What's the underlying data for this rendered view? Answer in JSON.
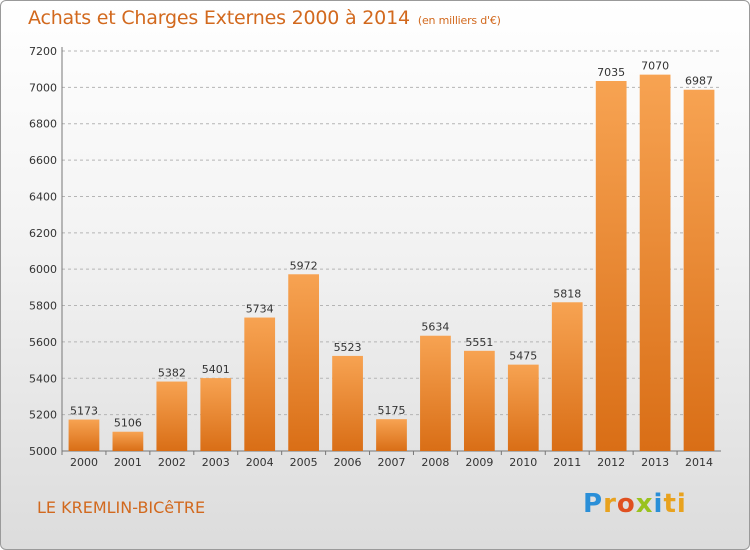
{
  "header": {
    "title": "Achats et Charges Externes 2000 à 2014",
    "subtitle": "(en milliers d'€)"
  },
  "footer": {
    "city": "LE KREMLIN-BICêTRE",
    "logo_parts": [
      "P",
      "r",
      "o",
      "x",
      "i",
      "ti"
    ]
  },
  "chart_data": {
    "type": "bar",
    "title": "Achats et Charges Externes 2000 à 2014",
    "subtitle": "(en milliers d'€)",
    "xlabel": "",
    "ylabel": "",
    "categories": [
      "2000",
      "2001",
      "2002",
      "2003",
      "2004",
      "2005",
      "2006",
      "2007",
      "2008",
      "2009",
      "2010",
      "2011",
      "2012",
      "2013",
      "2014"
    ],
    "values": [
      5173,
      5106,
      5382,
      5401,
      5734,
      5972,
      5523,
      5175,
      5634,
      5551,
      5475,
      5818,
      7035,
      7070,
      6987
    ],
    "ylim": [
      5000,
      7200
    ],
    "yticks": [
      5000,
      5200,
      5400,
      5600,
      5800,
      6000,
      6200,
      6400,
      6600,
      6800,
      7000,
      7200
    ],
    "grid": "horizontal-dashed",
    "legend": "none",
    "bar_color": "#f0892e"
  }
}
